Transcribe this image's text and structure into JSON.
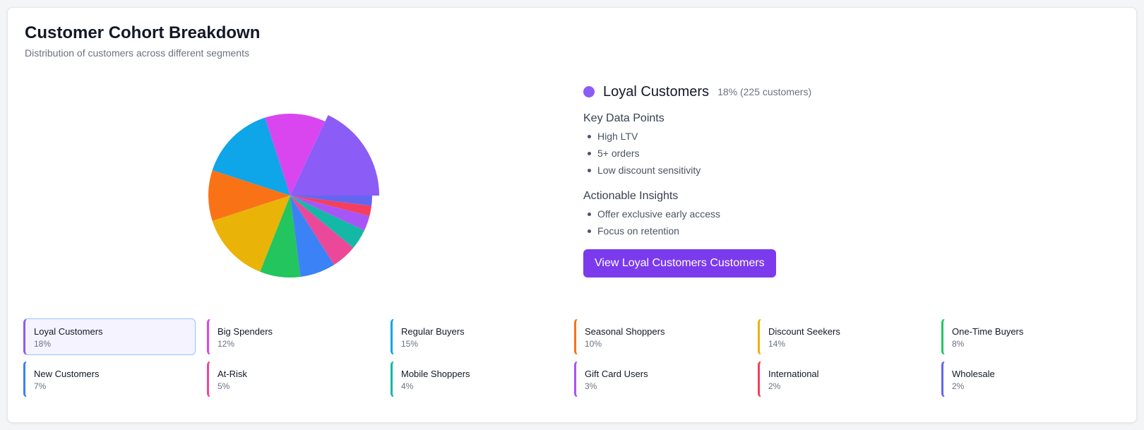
{
  "header": {
    "title": "Customer Cohort Breakdown",
    "subtitle": "Distribution of customers across different segments"
  },
  "detail": {
    "name": "Loyal Customers",
    "stat": "18% (225 customers)",
    "color": "#8b5cf6",
    "key_data_heading": "Key Data Points",
    "key_data": [
      "High LTV",
      "5+ orders",
      "Low discount sensitivity"
    ],
    "insights_heading": "Actionable Insights",
    "insights": [
      "Offer exclusive early access",
      "Focus on retention"
    ],
    "button_label": "View Loyal Customers Customers"
  },
  "chart_data": {
    "type": "pie",
    "selected": "Loyal Customers",
    "slices": [
      {
        "name": "Loyal Customers",
        "pct_label": "18%",
        "value": 18,
        "color": "#8b5cf6"
      },
      {
        "name": "Big Spenders",
        "pct_label": "12%",
        "value": 12,
        "color": "#d946ef"
      },
      {
        "name": "Regular Buyers",
        "pct_label": "15%",
        "value": 15,
        "color": "#0ea5e9"
      },
      {
        "name": "Seasonal Shoppers",
        "pct_label": "10%",
        "value": 10,
        "color": "#f97316"
      },
      {
        "name": "Discount Seekers",
        "pct_label": "14%",
        "value": 14,
        "color": "#eab308"
      },
      {
        "name": "One-Time Buyers",
        "pct_label": "8%",
        "value": 8,
        "color": "#22c55e"
      },
      {
        "name": "New Customers",
        "pct_label": "7%",
        "value": 7,
        "color": "#3b82f6"
      },
      {
        "name": "At-Risk",
        "pct_label": "5%",
        "value": 5,
        "color": "#ec4899"
      },
      {
        "name": "Mobile Shoppers",
        "pct_label": "4%",
        "value": 4,
        "color": "#14b8a6"
      },
      {
        "name": "Gift Card Users",
        "pct_label": "3%",
        "value": 3,
        "color": "#a855f7"
      },
      {
        "name": "International",
        "pct_label": "2%",
        "value": 2,
        "color": "#f43f5e"
      },
      {
        "name": "Wholesale",
        "pct_label": "2%",
        "value": 2,
        "color": "#6366f1"
      }
    ]
  }
}
